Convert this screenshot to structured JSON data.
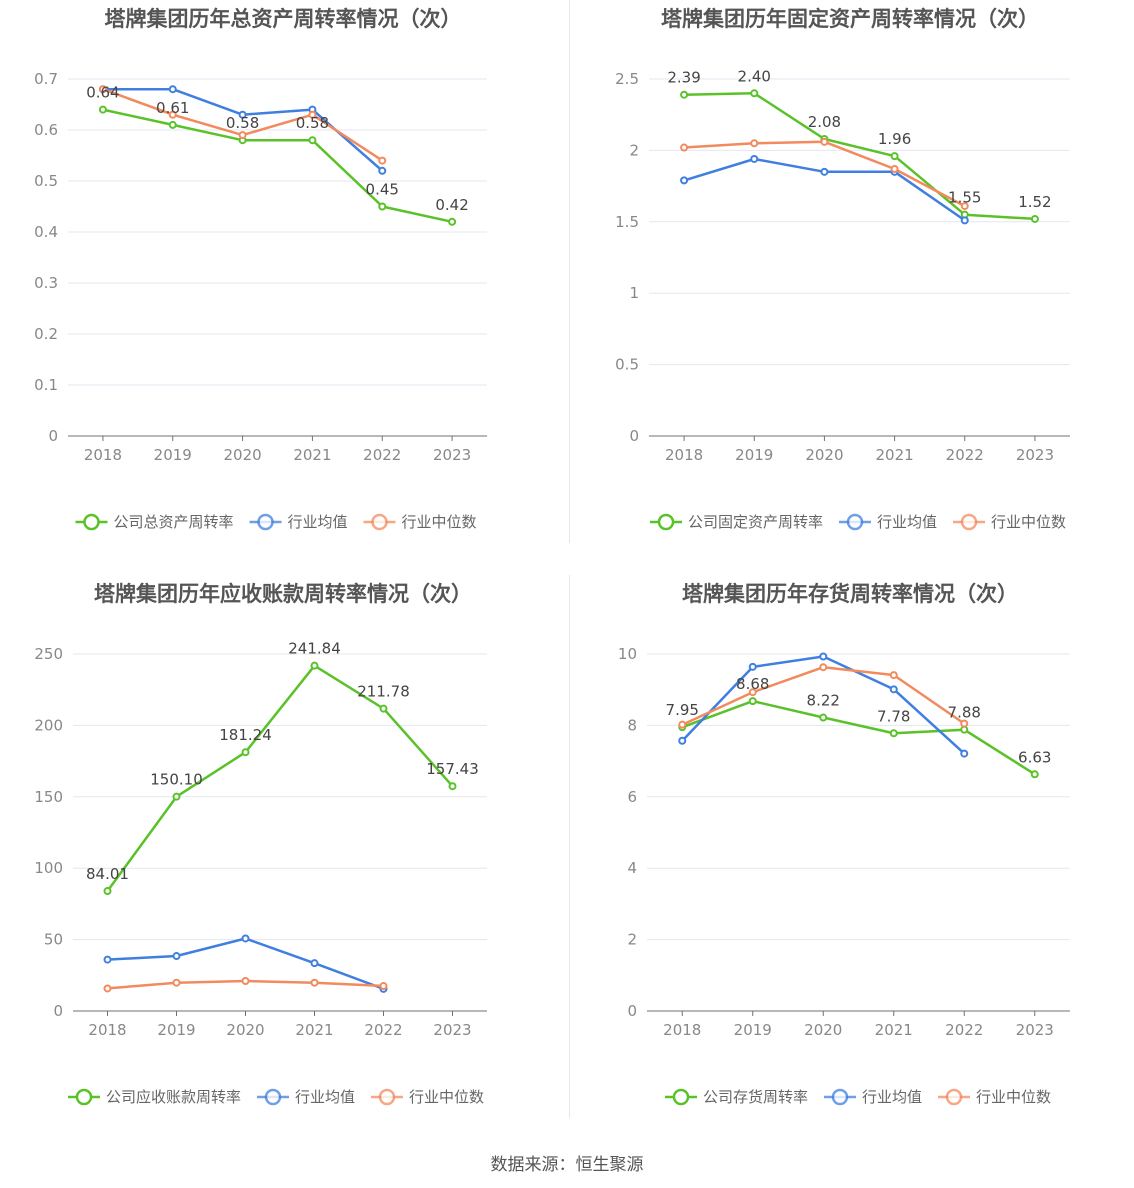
{
  "colors": {
    "company": "#5ac229",
    "industry_avg": "#3f7fe0",
    "industry_median": "#f28a5e"
  },
  "source_text": "数据来源：恒生聚源",
  "chart_data": [
    {
      "type": "line",
      "title": "塔牌集团历年总资产周转率情况（次）",
      "categories": [
        "2018",
        "2019",
        "2020",
        "2021",
        "2022",
        "2023"
      ],
      "ylim": [
        0,
        0.7
      ],
      "yticks": [
        "0",
        "0.1",
        "0.2",
        "0.3",
        "0.4",
        "0.5",
        "0.6",
        "0.7"
      ],
      "ytick_values": [
        0,
        0.1,
        0.2,
        0.3,
        0.4,
        0.5,
        0.6,
        0.7
      ],
      "grid": true,
      "legend_position": "bottom",
      "series": [
        {
          "name": "公司总资产周转率",
          "key": "company",
          "values": [
            0.64,
            0.61,
            0.58,
            0.58,
            0.45,
            0.42
          ],
          "labels": [
            "0.64",
            "0.61",
            "0.58",
            "0.58",
            "0.45",
            "0.42"
          ]
        },
        {
          "name": "行业均值",
          "key": "industry_avg",
          "values": [
            0.68,
            0.68,
            0.63,
            0.64,
            0.52,
            null
          ]
        },
        {
          "name": "行业中位数",
          "key": "industry_median",
          "values": [
            0.68,
            0.63,
            0.59,
            0.63,
            0.54,
            null
          ]
        }
      ]
    },
    {
      "type": "line",
      "title": "塔牌集团历年固定资产周转率情况（次）",
      "categories": [
        "2018",
        "2019",
        "2020",
        "2021",
        "2022",
        "2023"
      ],
      "ylim": [
        0,
        2.5
      ],
      "yticks": [
        "0",
        "0.5",
        "1",
        "1.5",
        "2",
        "2.5"
      ],
      "ytick_values": [
        0,
        0.5,
        1,
        1.5,
        2,
        2.5
      ],
      "grid": true,
      "legend_position": "bottom",
      "series": [
        {
          "name": "公司固定资产周转率",
          "key": "company",
          "values": [
            2.39,
            2.4,
            2.08,
            1.96,
            1.55,
            1.52
          ],
          "labels": [
            "2.39",
            "2.40",
            "2.08",
            "1.96",
            "1.55",
            "1.52"
          ]
        },
        {
          "name": "行业均值",
          "key": "industry_avg",
          "values": [
            1.79,
            1.94,
            1.85,
            1.85,
            1.51,
            null
          ]
        },
        {
          "name": "行业中位数",
          "key": "industry_median",
          "values": [
            2.02,
            2.05,
            2.06,
            1.87,
            1.61,
            null
          ]
        }
      ]
    },
    {
      "type": "line",
      "title": "塔牌集团历年应收账款周转率情况（次）",
      "categories": [
        "2018",
        "2019",
        "2020",
        "2021",
        "2022",
        "2023"
      ],
      "ylim": [
        0,
        250
      ],
      "yticks": [
        "0",
        "50",
        "100",
        "150",
        "200",
        "250"
      ],
      "ytick_values": [
        0,
        50,
        100,
        150,
        200,
        250
      ],
      "grid": true,
      "legend_position": "bottom",
      "series": [
        {
          "name": "公司应收账款周转率",
          "key": "company",
          "values": [
            84.01,
            150.1,
            181.24,
            241.84,
            211.78,
            157.43
          ],
          "labels": [
            "84.01",
            "150.10",
            "181.24",
            "241.84",
            "211.78",
            "157.43"
          ]
        },
        {
          "name": "行业均值",
          "key": "industry_avg",
          "values": [
            36.0,
            38.5,
            50.8,
            33.5,
            15.5,
            null
          ]
        },
        {
          "name": "行业中位数",
          "key": "industry_median",
          "values": [
            15.8,
            19.8,
            21.0,
            19.8,
            17.5,
            null
          ]
        }
      ]
    },
    {
      "type": "line",
      "title": "塔牌集团历年存货周转率情况（次）",
      "categories": [
        "2018",
        "2019",
        "2020",
        "2021",
        "2022",
        "2023"
      ],
      "ylim": [
        0,
        10
      ],
      "yticks": [
        "0",
        "2",
        "4",
        "6",
        "8",
        "10"
      ],
      "ytick_values": [
        0,
        2,
        4,
        6,
        8,
        10
      ],
      "grid": true,
      "legend_position": "bottom",
      "series": [
        {
          "name": "公司存货周转率",
          "key": "company",
          "values": [
            7.95,
            8.68,
            8.22,
            7.78,
            7.88,
            6.63
          ],
          "labels": [
            "7.95",
            "8.68",
            "8.22",
            "7.78",
            "7.88",
            "6.63"
          ]
        },
        {
          "name": "行业均值",
          "key": "industry_avg",
          "values": [
            7.57,
            9.64,
            9.93,
            9.01,
            7.21,
            null
          ]
        },
        {
          "name": "行业中位数",
          "key": "industry_median",
          "values": [
            8.02,
            8.93,
            9.63,
            9.41,
            8.05,
            null
          ]
        }
      ]
    }
  ]
}
